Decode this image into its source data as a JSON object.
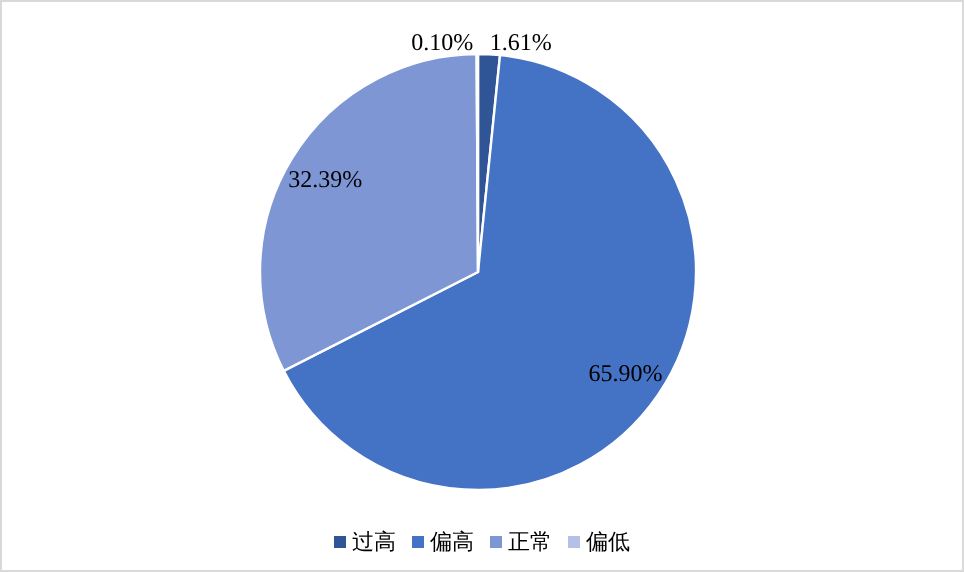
{
  "chart_data": {
    "type": "pie",
    "categories": [
      "过高",
      "偏高",
      "正常",
      "偏低"
    ],
    "values": [
      1.61,
      65.9,
      32.39,
      0.1
    ],
    "colors": [
      "#2f5597",
      "#4472c4",
      "#7f96d4",
      "#b4c0e4"
    ],
    "value_labels": [
      "1.61%",
      "65.90%",
      "32.39%",
      "0.10%"
    ],
    "legend": "bottom"
  }
}
